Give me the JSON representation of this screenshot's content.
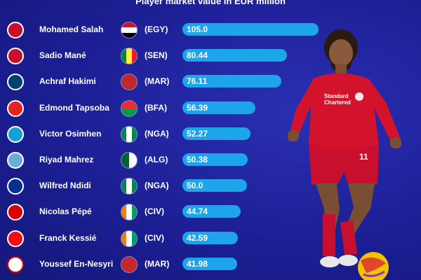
{
  "chart_data": {
    "type": "bar",
    "orientation": "horizontal",
    "title": "Player market value in EUR million",
    "categories": [
      "Mohamed Salah",
      "Sadio Mané",
      "Achraf Hakimi",
      "Edmond Tapsoba",
      "Victor Osimhen",
      "Riyad Mahrez",
      "Wilfred Ndidi",
      "Nicolas Pépé",
      "Franck Kessié",
      "Youssef En-Nesyri"
    ],
    "values": [
      105.0,
      80.44,
      76.11,
      56.39,
      52.27,
      50.38,
      50.0,
      44.74,
      42.59,
      41.98
    ],
    "value_labels": [
      "105.0",
      "80.44",
      "76.11",
      "56.39",
      "52.27",
      "50.38",
      "50.0",
      "44.74",
      "42.59",
      "41.98"
    ],
    "country_codes": [
      "(EGY)",
      "(SEN)",
      "(MAR)",
      "(BFA)",
      "(NGA)",
      "(ALG)",
      "(NGA)",
      "(CIV)",
      "(CIV)",
      "(MAR)"
    ],
    "club_crests": [
      "liverpool-crest-icon",
      "liverpool-crest-icon",
      "psg-crest-icon",
      "leverkusen-crest-icon",
      "napoli-crest-icon",
      "mancity-crest-icon",
      "leicester-crest-icon",
      "arsenal-crest-icon",
      "milan-crest-icon",
      "sevilla-crest-icon"
    ],
    "flag_icons": [
      "egypt-flag-icon",
      "senegal-flag-icon",
      "morocco-flag-icon",
      "burkina-faso-flag-icon",
      "nigeria-flag-icon",
      "algeria-flag-icon",
      "nigeria-flag-icon",
      "ivory-coast-flag-icon",
      "ivory-coast-flag-icon",
      "morocco-flag-icon"
    ],
    "xlim": [
      0,
      105
    ],
    "grid": false,
    "legend": "none",
    "bar_color": "#1ea4ea"
  },
  "player_illustration": "player-photo-icon",
  "colors": {
    "background": "#1c1f94",
    "bar": "#1ea4ea",
    "text": "#ffffff"
  }
}
